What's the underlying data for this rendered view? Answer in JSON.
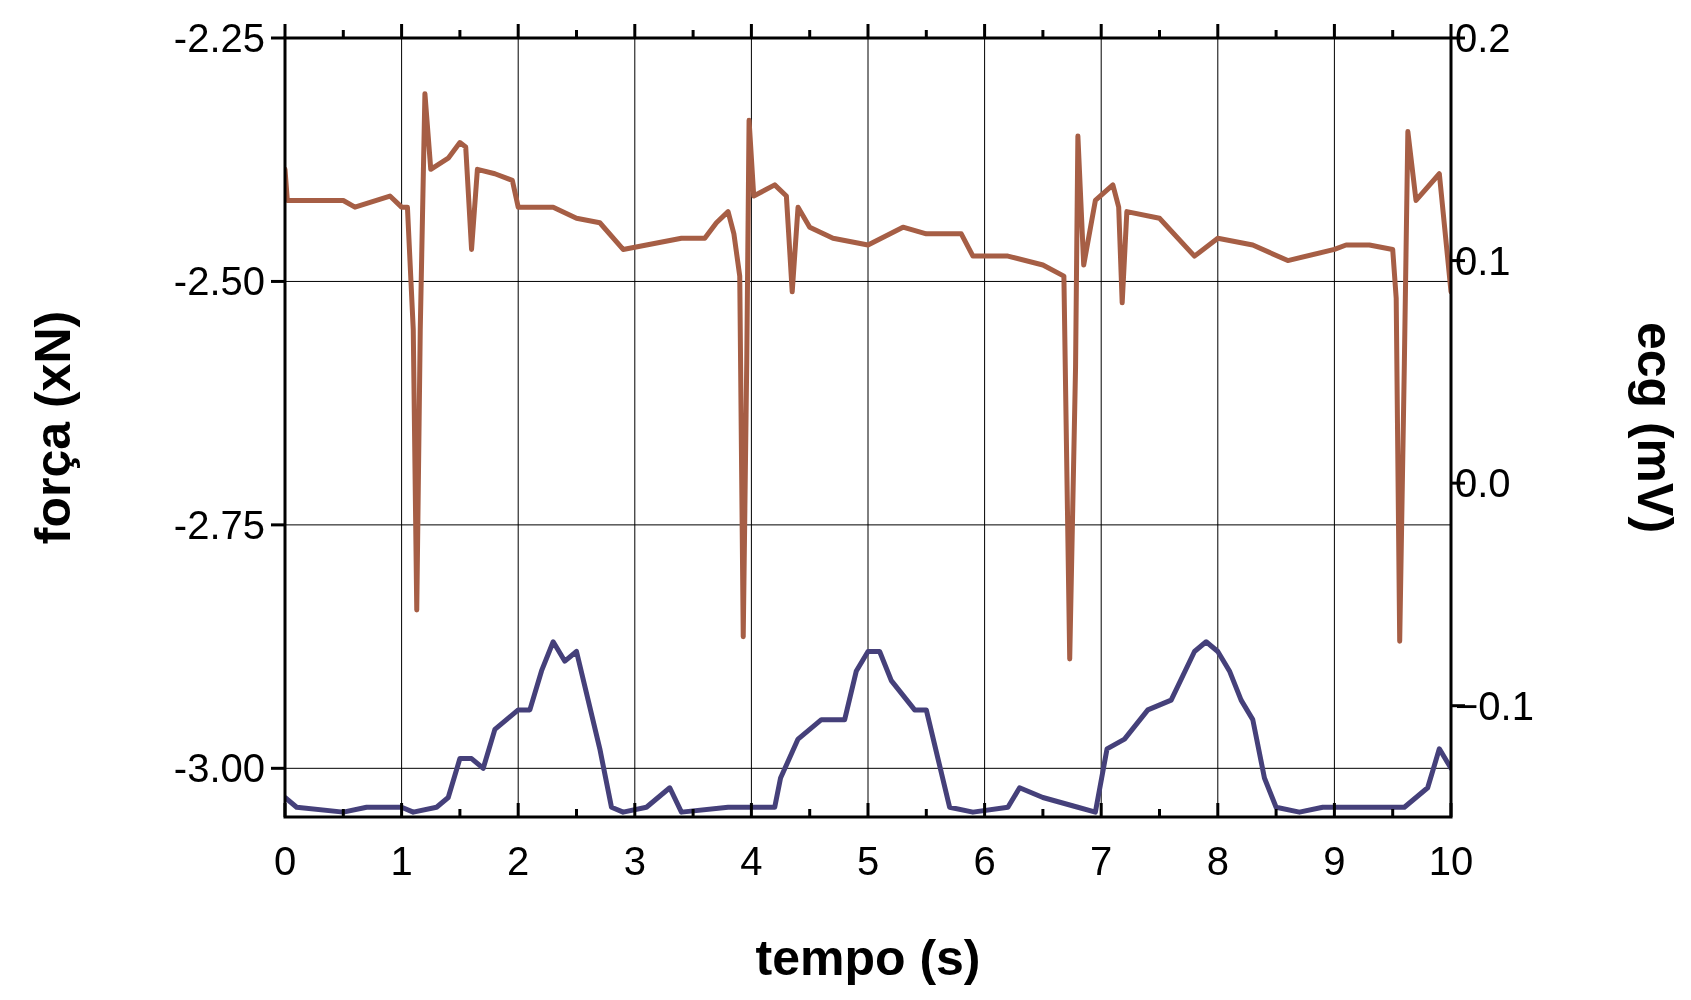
{
  "chart_data": {
    "type": "line",
    "xlabel": "tempo (s)",
    "ylabel": "força (xN)",
    "y2label": "ecg (mV)",
    "xlim": [
      0,
      10
    ],
    "xticks": [
      0,
      1,
      2,
      3,
      4,
      5,
      6,
      7,
      8,
      9,
      10
    ],
    "ylim": [
      -3.05,
      -2.25
    ],
    "yticks": [
      {
        "value": -2.25,
        "label": "-2.25"
      },
      {
        "value": -2.5,
        "label": "-2.50"
      },
      {
        "value": -2.75,
        "label": "-2.75"
      },
      {
        "value": -3.0,
        "label": "-3.00"
      }
    ],
    "y2lim": [
      -0.15,
      0.2
    ],
    "y2ticks": [
      {
        "value": 0.2,
        "label": "0.2"
      },
      {
        "value": 0.1,
        "label": "0.1"
      },
      {
        "value": 0.0,
        "label": "0.0"
      },
      {
        "value": -0.1,
        "label": "−0.1"
      }
    ],
    "grid": true,
    "line_style": "solid",
    "series": [
      {
        "color": "#a65e45",
        "axis": "y2",
        "x": [
          0,
          0.02,
          0.5,
          0.6,
          0.9,
          1.0,
          1.05,
          1.1,
          1.13,
          1.16,
          1.2,
          1.25,
          1.4,
          1.5,
          1.55,
          1.6,
          1.65,
          1.8,
          1.95,
          2.0,
          2.3,
          2.5,
          2.7,
          2.9,
          3.1,
          3.4,
          3.6,
          3.7,
          3.8,
          3.85,
          3.9,
          3.93,
          3.96,
          3.98,
          4.02,
          4.2,
          4.3,
          4.35,
          4.4,
          4.5,
          4.7,
          5.0,
          5.3,
          5.5,
          5.8,
          5.9,
          6.2,
          6.5,
          6.68,
          6.73,
          6.78,
          6.8,
          6.85,
          6.95,
          7.1,
          7.15,
          7.18,
          7.22,
          7.5,
          7.8,
          8.0,
          8.3,
          8.6,
          9.0,
          9.1,
          9.3,
          9.5,
          9.53,
          9.56,
          9.6,
          9.63,
          9.7,
          9.9,
          10
        ],
        "values": [
          0.141,
          0.127,
          0.127,
          0.124,
          0.129,
          0.124,
          0.124,
          0.069,
          -0.057,
          0.069,
          0.175,
          0.141,
          0.146,
          0.153,
          0.151,
          0.105,
          0.141,
          0.139,
          0.136,
          0.124,
          0.124,
          0.119,
          0.117,
          0.105,
          0.107,
          0.11,
          0.11,
          0.117,
          0.122,
          0.112,
          0.093,
          -0.069,
          0.054,
          0.163,
          0.129,
          0.134,
          0.129,
          0.086,
          0.124,
          0.115,
          0.11,
          0.107,
          0.115,
          0.112,
          0.112,
          0.102,
          0.102,
          0.098,
          0.093,
          -0.079,
          0.052,
          0.156,
          0.098,
          0.127,
          0.134,
          0.124,
          0.081,
          0.122,
          0.119,
          0.102,
          0.11,
          0.107,
          0.1,
          0.105,
          0.107,
          0.107,
          0.105,
          0.083,
          -0.071,
          0.054,
          0.158,
          0.127,
          0.139,
          0.086
        ]
      },
      {
        "color": "#45407a",
        "x": [
          0,
          0.1,
          0.5,
          0.7,
          0.9,
          1.0,
          1.1,
          1.3,
          1.4,
          1.5,
          1.6,
          1.7,
          1.8,
          1.9,
          2.0,
          2.1,
          2.2,
          2.3,
          2.4,
          2.5,
          2.6,
          2.7,
          2.8,
          2.9,
          3.1,
          3.3,
          3.4,
          3.8,
          4.0,
          4.2,
          4.25,
          4.4,
          4.6,
          4.8,
          4.9,
          5.0,
          5.1,
          5.2,
          5.4,
          5.5,
          5.6,
          5.7,
          5.9,
          6.2,
          6.3,
          6.5,
          6.8,
          6.95,
          7.05,
          7.2,
          7.4,
          7.6,
          7.8,
          7.9,
          8.0,
          8.1,
          8.2,
          8.3,
          8.4,
          8.5,
          8.7,
          8.9,
          9.2,
          9.4,
          9.6,
          9.8,
          9.9,
          10
        ],
        "values": [
          -3.03,
          -3.04,
          -3.045,
          -3.04,
          -3.04,
          -3.04,
          -3.045,
          -3.04,
          -3.03,
          -2.99,
          -2.99,
          -3.0,
          -2.96,
          -2.95,
          -2.94,
          -2.94,
          -2.9,
          -2.87,
          -2.89,
          -2.88,
          -2.93,
          -2.98,
          -3.04,
          -3.045,
          -3.04,
          -3.02,
          -3.045,
          -3.04,
          -3.04,
          -3.04,
          -3.01,
          -2.97,
          -2.95,
          -2.95,
          -2.9,
          -2.88,
          -2.88,
          -2.91,
          -2.94,
          -2.94,
          -2.99,
          -3.04,
          -3.045,
          -3.04,
          -3.02,
          -3.03,
          -3.04,
          -3.045,
          -2.98,
          -2.97,
          -2.94,
          -2.93,
          -2.88,
          -2.87,
          -2.88,
          -2.9,
          -2.93,
          -2.95,
          -3.01,
          -3.04,
          -3.045,
          -3.04,
          -3.04,
          -3.04,
          -3.04,
          -3.02,
          -2.98,
          -3.0
        ]
      }
    ]
  }
}
